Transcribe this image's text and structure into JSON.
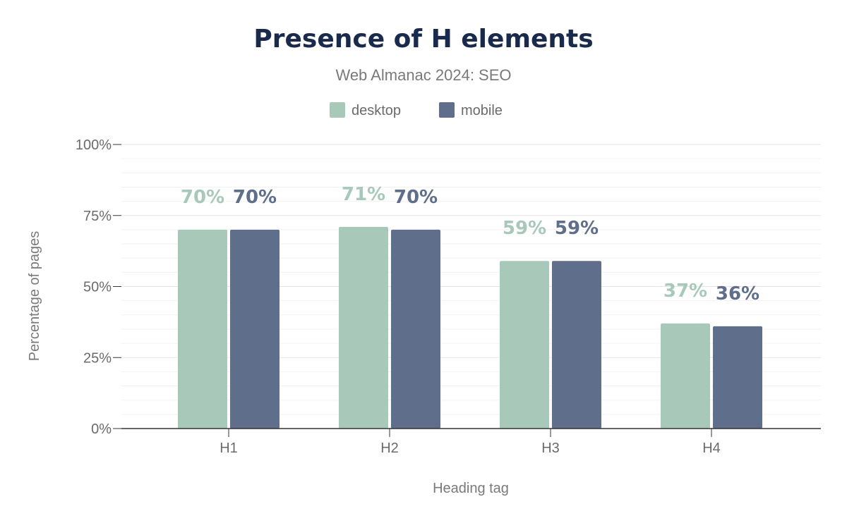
{
  "chart_data": {
    "type": "bar",
    "title": "Presence of H elements",
    "subtitle": "Web Almanac 2024: SEO",
    "xlabel": "Heading tag",
    "ylabel": "Percentage of pages",
    "categories": [
      "H1",
      "H2",
      "H3",
      "H4"
    ],
    "series": [
      {
        "name": "desktop",
        "color": "#a8c9ba",
        "values": [
          70,
          71,
          59,
          37
        ],
        "labels": [
          "70%",
          "71%",
          "59%",
          "37%"
        ]
      },
      {
        "name": "mobile",
        "color": "#5f6e8b",
        "values": [
          70,
          70,
          59,
          36
        ],
        "labels": [
          "70%",
          "70%",
          "59%",
          "36%"
        ]
      }
    ],
    "ylim": [
      0,
      100
    ],
    "yticks": [
      "0%",
      "25%",
      "50%",
      "75%",
      "100%"
    ],
    "ytick_values": [
      0,
      25,
      50,
      75,
      100
    ],
    "grid": true,
    "legend_position": "top"
  }
}
